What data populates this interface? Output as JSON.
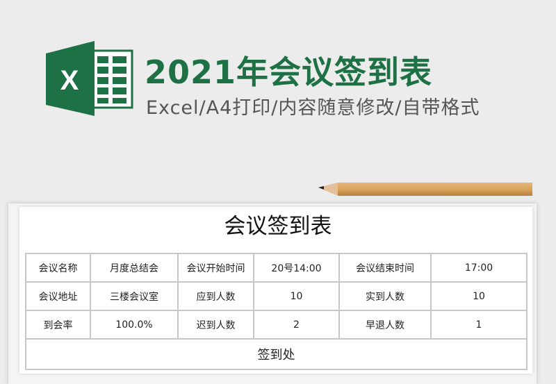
{
  "banner": {
    "title": "2021年会议签到表",
    "subtitle": "Excel/A4打印/内容随意修改/自带格式",
    "logo_letter": "X",
    "accent": "#1e7145"
  },
  "sheet": {
    "title": "会议签到表",
    "rows": [
      [
        "会议名称",
        "月度总结会",
        "会议开始时间",
        "20号14:00",
        "会议结束时间",
        "17:00"
      ],
      [
        "会议地址",
        "三楼会议室",
        "应到人数",
        "10",
        "实到人数",
        "10"
      ],
      [
        "到会率",
        "100.0%",
        "迟到人数",
        "2",
        "早退人数",
        "1"
      ]
    ],
    "sign_section": "签到处"
  }
}
